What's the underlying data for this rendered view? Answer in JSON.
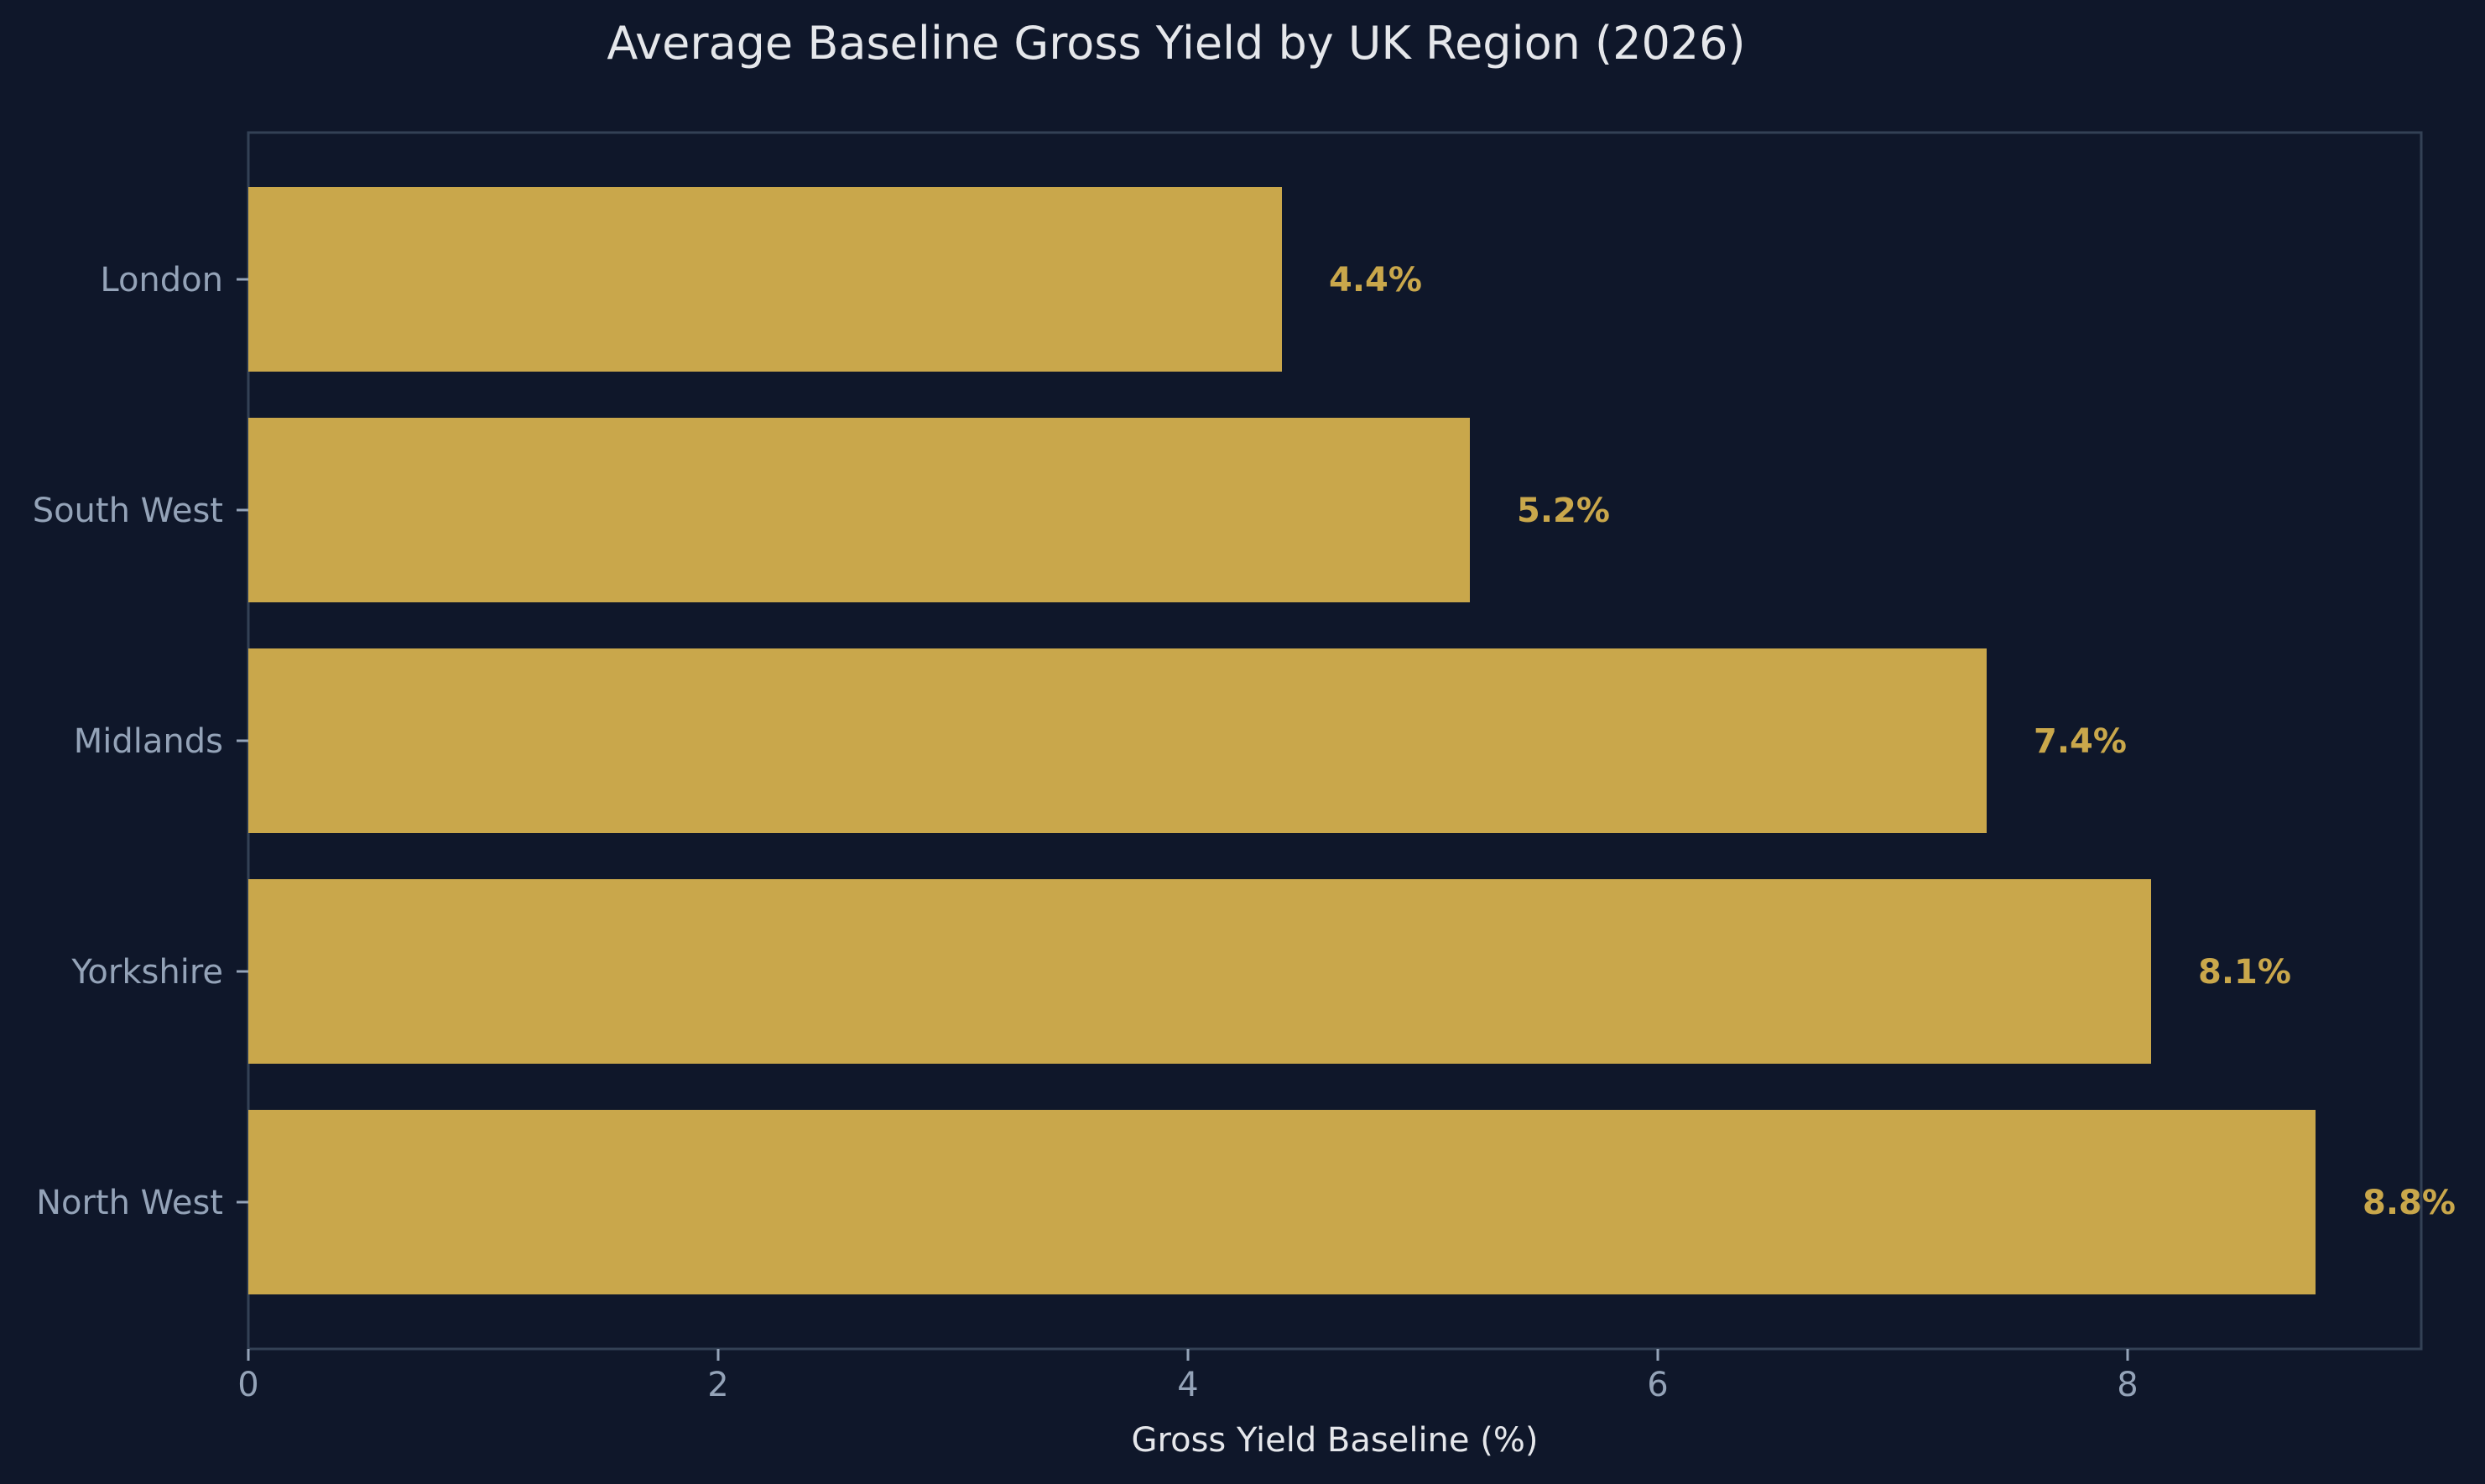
{
  "chart_data": {
    "type": "bar",
    "orientation": "horizontal",
    "title": "Average Baseline Gross Yield by UK Region (2026)",
    "xlabel": "Gross Yield Baseline (%)",
    "ylabel": "",
    "categories": [
      "London",
      "South West",
      "Midlands",
      "Yorkshire",
      "North West"
    ],
    "values": [
      4.4,
      5.2,
      7.4,
      8.1,
      8.8
    ],
    "value_labels": [
      "4.4%",
      "5.2%",
      "7.4%",
      "8.1%",
      "8.8%"
    ],
    "xlim": [
      0,
      9.25
    ],
    "xticks": [
      0,
      2,
      4,
      6,
      8
    ],
    "xtick_labels": [
      "0",
      "2",
      "4",
      "6",
      "8"
    ],
    "grid": false,
    "legend": "none",
    "colors": {
      "background": "#0f172a",
      "bar": "#c9a74b",
      "text": "#e5e7eb",
      "muted": "#94a3b8",
      "frame": "#334155"
    }
  }
}
